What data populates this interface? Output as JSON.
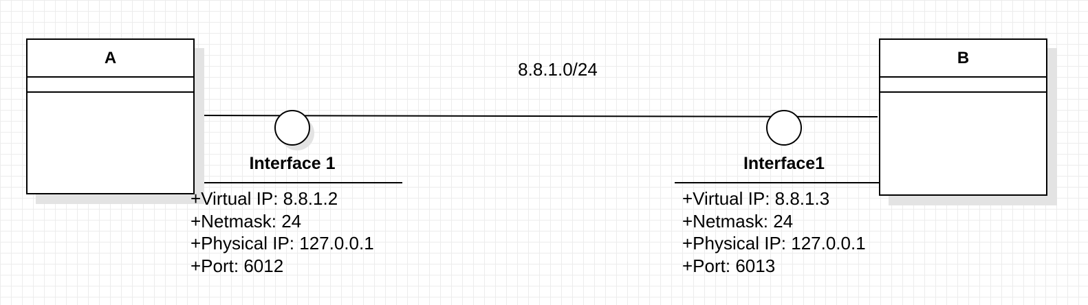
{
  "diagram": {
    "network_label": "8.8.1.0/24",
    "nodes": [
      {
        "name": "A"
      },
      {
        "name": "B"
      }
    ],
    "interfaces": [
      {
        "name": "Interface 1",
        "props": [
          "+Virtual IP: 8.8.1.2",
          "+Netmask: 24",
          "+Physical IP: 127.0.0.1",
          "+Port: 6012"
        ]
      },
      {
        "name": "Interface1",
        "props": [
          "+Virtual IP: 8.8.1.3",
          "+Netmask: 24",
          "+Physical IP: 127.0.0.1",
          "+Port: 6013"
        ]
      }
    ]
  }
}
